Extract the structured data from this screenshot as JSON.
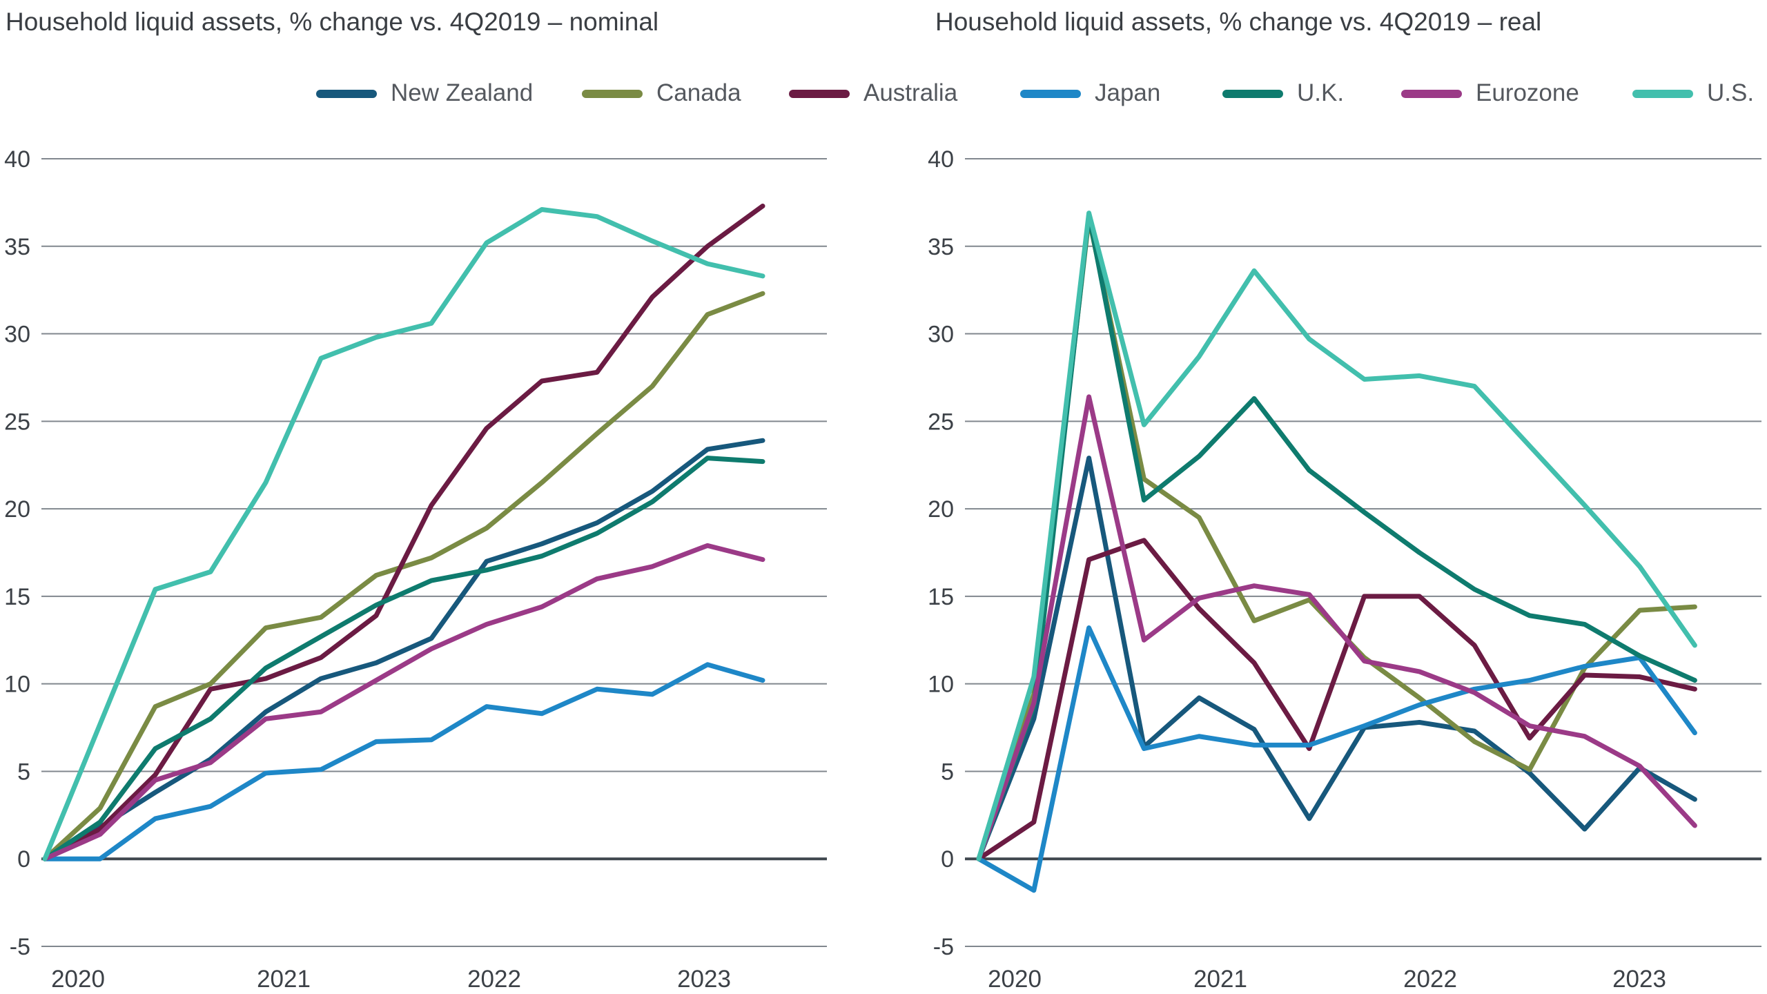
{
  "chart_data": [
    {
      "id": "nominal",
      "type": "line",
      "title": "Household liquid assets, % change vs. 4Q2019 – nominal",
      "xlabel": "",
      "ylabel": "",
      "ylim": [
        -5,
        40
      ],
      "yticks": [
        40,
        35,
        30,
        25,
        20,
        15,
        10,
        5,
        0,
        -5
      ],
      "xticks": [
        "2020",
        "2021",
        "2022",
        "2023"
      ],
      "grid": "horizontal",
      "legend_position": "top",
      "categories": [
        "Q4 2019",
        "Q1 2020",
        "Q2 2020",
        "Q3 2020",
        "Q4 2020",
        "Q1 2021",
        "Q2 2021",
        "Q3 2021",
        "Q4 2021",
        "Q1 2022",
        "Q2 2022",
        "Q3 2022",
        "Q4 2022",
        "Q1 2023"
      ],
      "series": [
        {
          "name": "New Zealand",
          "color": "#17587c",
          "values": [
            0,
            1.8,
            3.8,
            5.7,
            8.4,
            10.3,
            11.2,
            12.6,
            17.0,
            18.0,
            19.2,
            21.0,
            23.4,
            23.9
          ]
        },
        {
          "name": "Canada",
          "color": "#7a8b44",
          "values": [
            0,
            2.9,
            8.7,
            10.0,
            13.2,
            13.8,
            16.2,
            17.2,
            18.9,
            21.5,
            24.3,
            27.0,
            31.1,
            32.3
          ]
        },
        {
          "name": "Australia",
          "color": "#6b1b43",
          "values": [
            0,
            1.7,
            4.8,
            9.7,
            10.3,
            11.5,
            13.9,
            20.2,
            24.6,
            27.3,
            27.8,
            32.1,
            35.0,
            37.3
          ]
        },
        {
          "name": "Japan",
          "color": "#1e87c7",
          "values": [
            0,
            0.0,
            2.3,
            3.0,
            4.9,
            5.1,
            6.7,
            6.8,
            8.7,
            8.3,
            9.7,
            9.4,
            11.1,
            10.2
          ]
        },
        {
          "name": "U.K.",
          "color": "#0e7b6e",
          "values": [
            0,
            2.1,
            6.3,
            8.0,
            10.9,
            12.7,
            14.5,
            15.9,
            16.5,
            17.3,
            18.6,
            20.4,
            22.9,
            22.7
          ]
        },
        {
          "name": "Eurozone",
          "color": "#9b3a87",
          "values": [
            0,
            1.4,
            4.5,
            5.5,
            8.0,
            8.4,
            10.2,
            12.0,
            13.4,
            14.4,
            16.0,
            16.7,
            17.9,
            17.1
          ]
        },
        {
          "name": "U.S.",
          "color": "#42bfad",
          "values": [
            0,
            7.7,
            15.4,
            16.4,
            21.5,
            28.6,
            29.8,
            30.6,
            35.2,
            37.1,
            36.7,
            35.3,
            34.0,
            33.3
          ]
        }
      ]
    },
    {
      "id": "real",
      "type": "line",
      "title": "Household liquid assets, % change vs. 4Q2019 – real",
      "xlabel": "",
      "ylabel": "",
      "ylim": [
        -5,
        40
      ],
      "yticks": [
        40,
        35,
        30,
        25,
        20,
        15,
        10,
        5,
        0,
        -5
      ],
      "xticks": [
        "2020",
        "2021",
        "2022",
        "2023"
      ],
      "grid": "horizontal",
      "legend_position": "top",
      "categories": [
        "Q4 2019",
        "Q1 2020",
        "Q2 2020",
        "Q3 2020",
        "Q4 2020",
        "Q1 2021",
        "Q2 2021",
        "Q3 2021",
        "Q4 2021",
        "Q1 2022",
        "Q2 2022",
        "Q3 2022",
        "Q4 2022",
        "Q1 2023"
      ],
      "series": [
        {
          "name": "New Zealand",
          "color": "#17587c",
          "values": [
            0,
            8.0,
            22.9,
            6.4,
            9.2,
            7.4,
            2.3,
            7.5,
            7.8,
            7.3,
            4.9,
            1.7,
            5.2,
            3.4
          ]
        },
        {
          "name": "Canada",
          "color": "#7a8b44",
          "values": [
            0,
            9.4,
            36.6,
            21.7,
            19.5,
            13.6,
            14.8,
            11.5,
            9.2,
            6.7,
            5.1,
            10.9,
            14.2,
            14.4
          ]
        },
        {
          "name": "Australia",
          "color": "#6b1b43",
          "values": [
            0,
            2.1,
            17.1,
            18.2,
            14.3,
            11.2,
            6.3,
            15.0,
            15.0,
            12.2,
            6.9,
            10.5,
            10.4,
            9.7
          ]
        },
        {
          "name": "Japan",
          "color": "#1e87c7",
          "values": [
            0,
            -1.8,
            13.2,
            6.3,
            7.0,
            6.5,
            6.5,
            7.6,
            8.8,
            9.7,
            10.2,
            11.0,
            11.5,
            7.2
          ]
        },
        {
          "name": "U.K.",
          "color": "#0e7b6e",
          "values": [
            0,
            8.7,
            36.8,
            20.5,
            23.0,
            26.3,
            22.2,
            19.8,
            17.5,
            15.4,
            13.9,
            13.4,
            11.6,
            10.2
          ]
        },
        {
          "name": "Eurozone",
          "color": "#9b3a87",
          "values": [
            0,
            8.9,
            26.4,
            12.5,
            14.9,
            15.6,
            15.1,
            11.3,
            10.7,
            9.5,
            7.6,
            7.0,
            5.3,
            1.9
          ]
        },
        {
          "name": "U.S.",
          "color": "#42bfad",
          "values": [
            0,
            10.4,
            36.9,
            24.8,
            28.7,
            33.6,
            29.7,
            27.4,
            27.6,
            27.0,
            23.6,
            20.2,
            16.7,
            12.2
          ]
        }
      ]
    }
  ]
}
